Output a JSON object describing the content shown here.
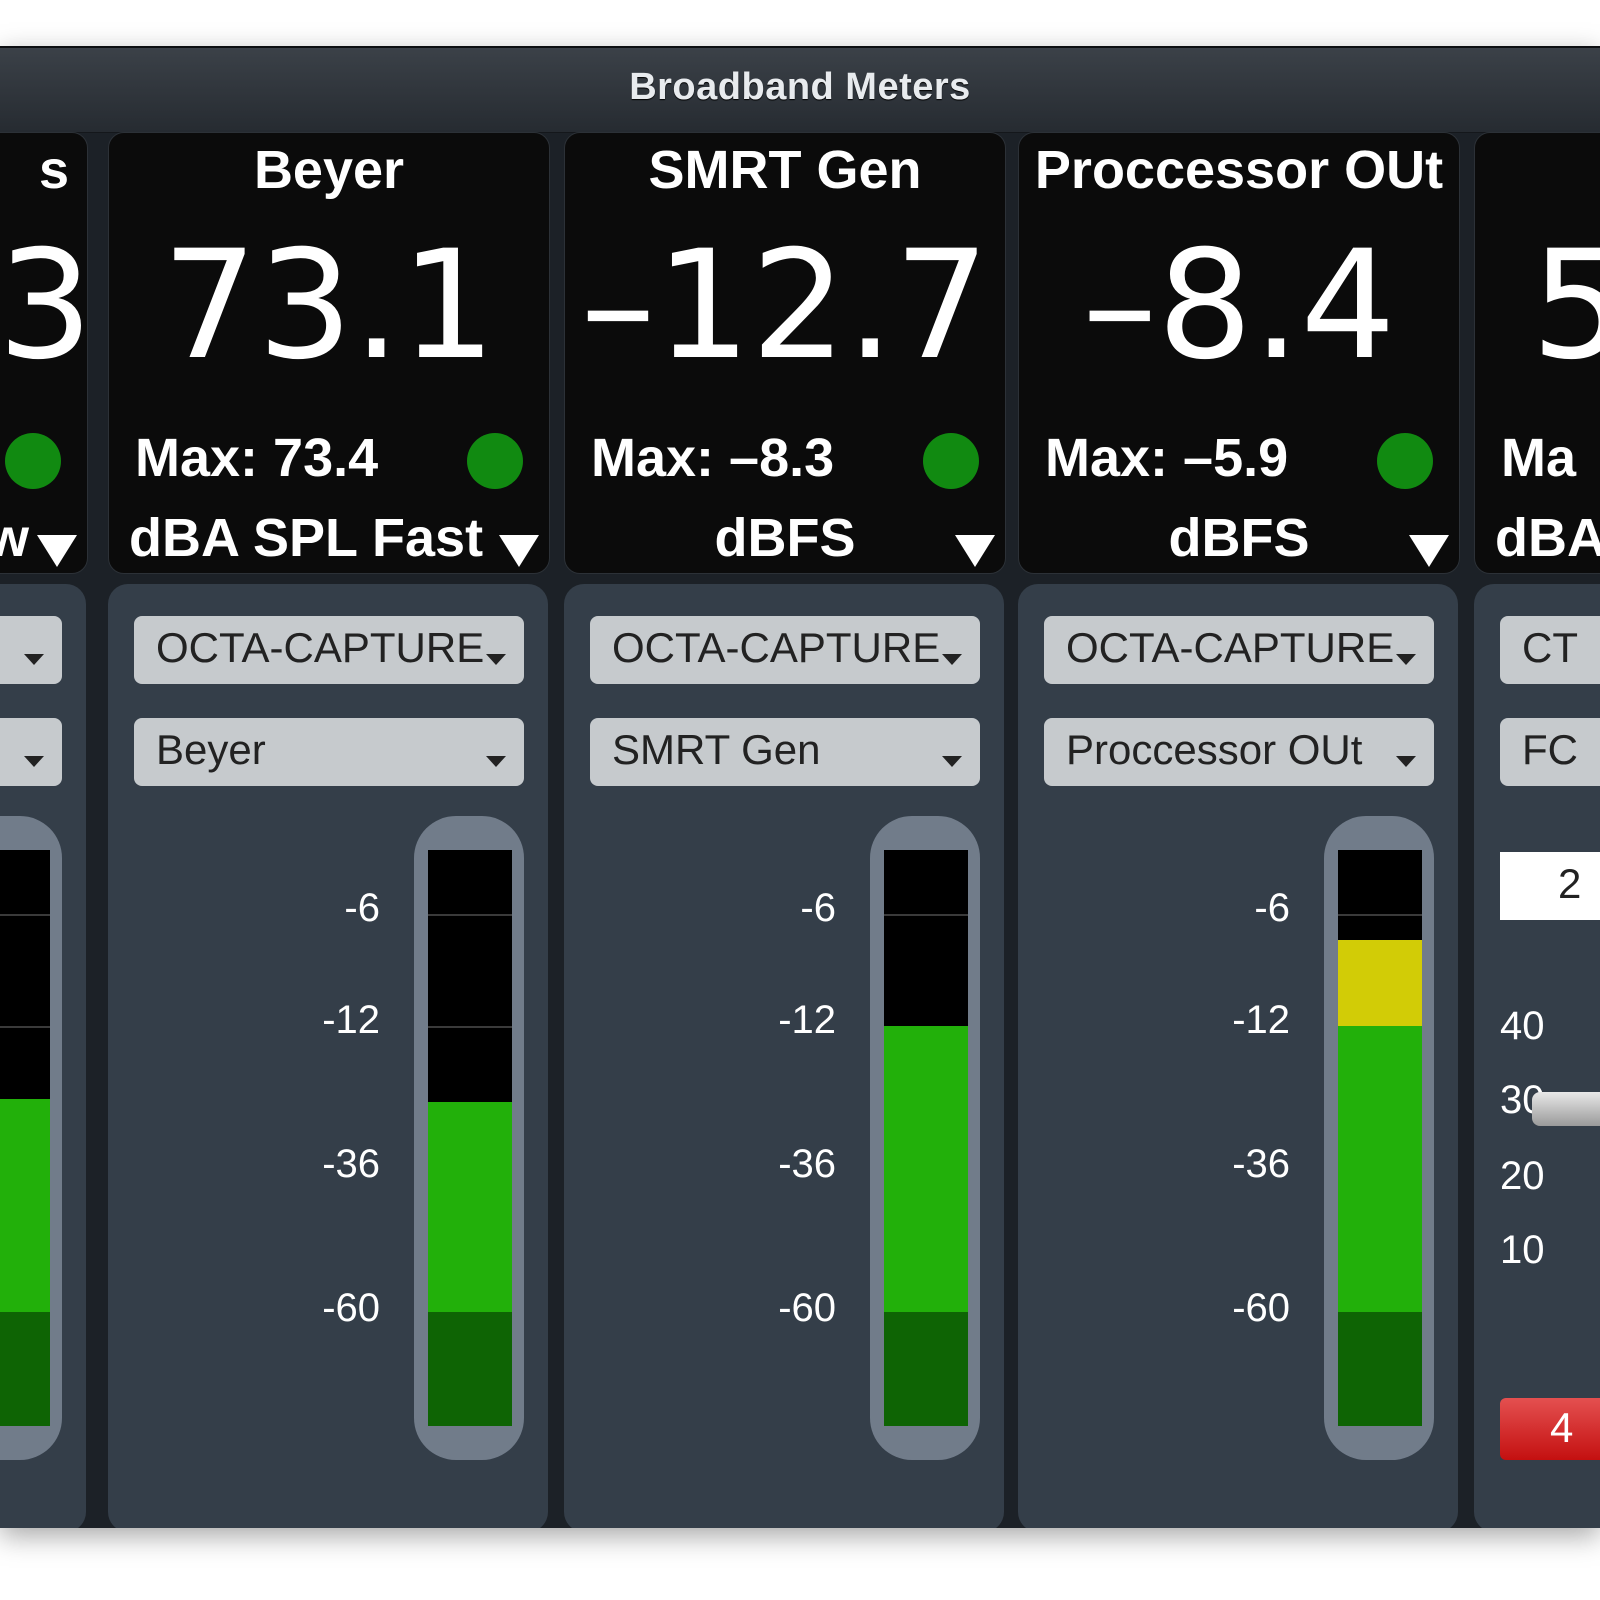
{
  "window": {
    "title": "Broadband Meters"
  },
  "channels": [
    {
      "name": "s",
      "value": "3",
      "max": "",
      "unit": "w",
      "device": "",
      "input": "",
      "scale": []
    },
    {
      "name": "Beyer",
      "value": "73.1",
      "max": "Max: 73.4",
      "unit": "dBA SPL Fast",
      "device": "OCTA-CAPTURE",
      "input": "Beyer",
      "scale": [
        "-6",
        "-12",
        "-36",
        "-60"
      ],
      "level_fraction": 0.56
    },
    {
      "name": "SMRT Gen",
      "value": "–12.7",
      "max": "Max: –8.3",
      "unit": "dBFS",
      "device": "OCTA-CAPTURE",
      "input": "SMRT Gen",
      "scale": [
        "-6",
        "-12",
        "-36",
        "-60"
      ],
      "level_fraction": 0.69
    },
    {
      "name": "Proccessor OUt",
      "value": "–8.4",
      "max": "Max: –5.9",
      "unit": "dBFS",
      "device": "OCTA-CAPTURE",
      "input": "Proccessor OUt",
      "scale": [
        "-6",
        "-12",
        "-36",
        "-60"
      ],
      "level_fraction": 0.84
    },
    {
      "name": "",
      "value": "5",
      "max": "Ma",
      "unit": "dBA",
      "device": "CT",
      "input": "FC",
      "field_value": "2",
      "scale": [
        "40",
        "30",
        "20",
        "10"
      ],
      "button_label": "4"
    }
  ],
  "colors": {
    "led_green": "#118a11",
    "meter_green": "#22b00a",
    "meter_dark_green": "#0e6404",
    "meter_yellow": "#d2cc06",
    "panel": "#343e49"
  }
}
